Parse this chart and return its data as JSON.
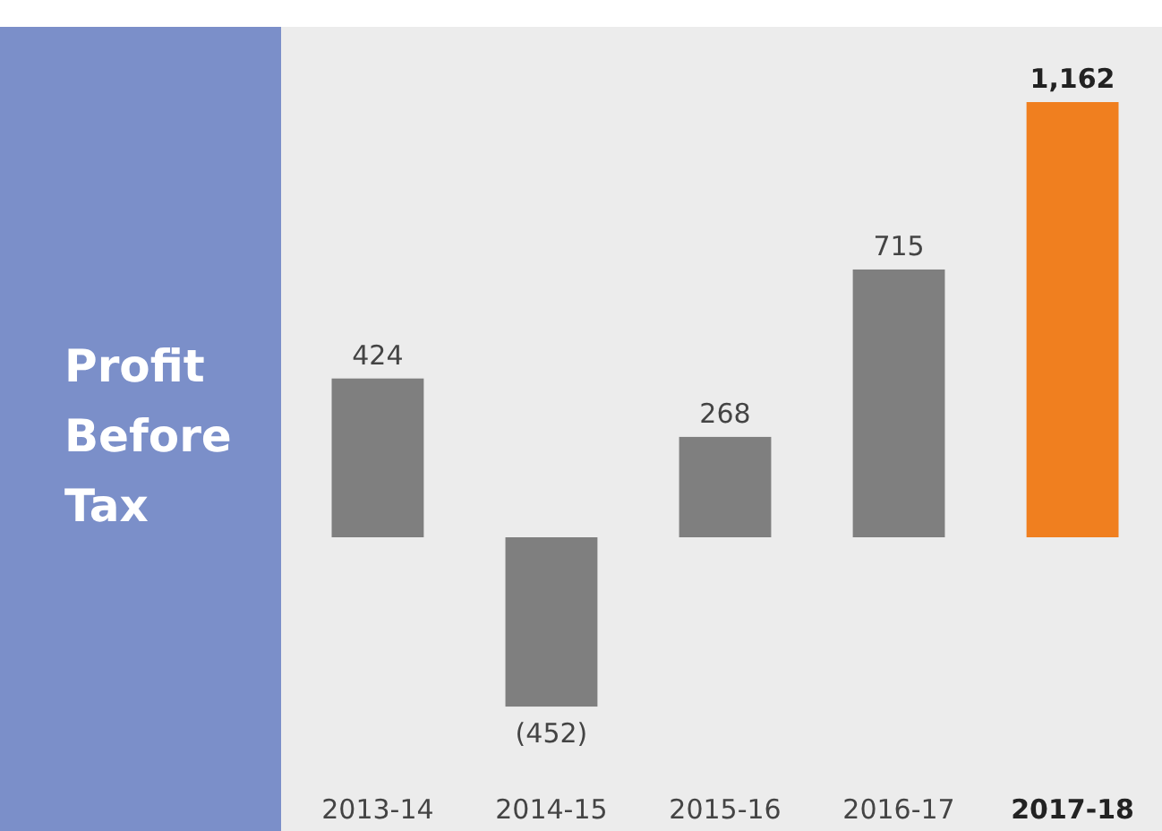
{
  "chart_data": {
    "type": "bar",
    "title": "Profit Before Tax",
    "categories": [
      "2013-14",
      "2014-15",
      "2015-16",
      "2016-17",
      "2017-18"
    ],
    "values": [
      424,
      -452,
      268,
      715,
      1162
    ],
    "colors": [
      "#7f7f7f",
      "#7f7f7f",
      "#7f7f7f",
      "#7f7f7f",
      "#f07f1f"
    ],
    "value_labels": [
      "424",
      "(452)",
      "268",
      "715",
      "1,162"
    ]
  }
}
